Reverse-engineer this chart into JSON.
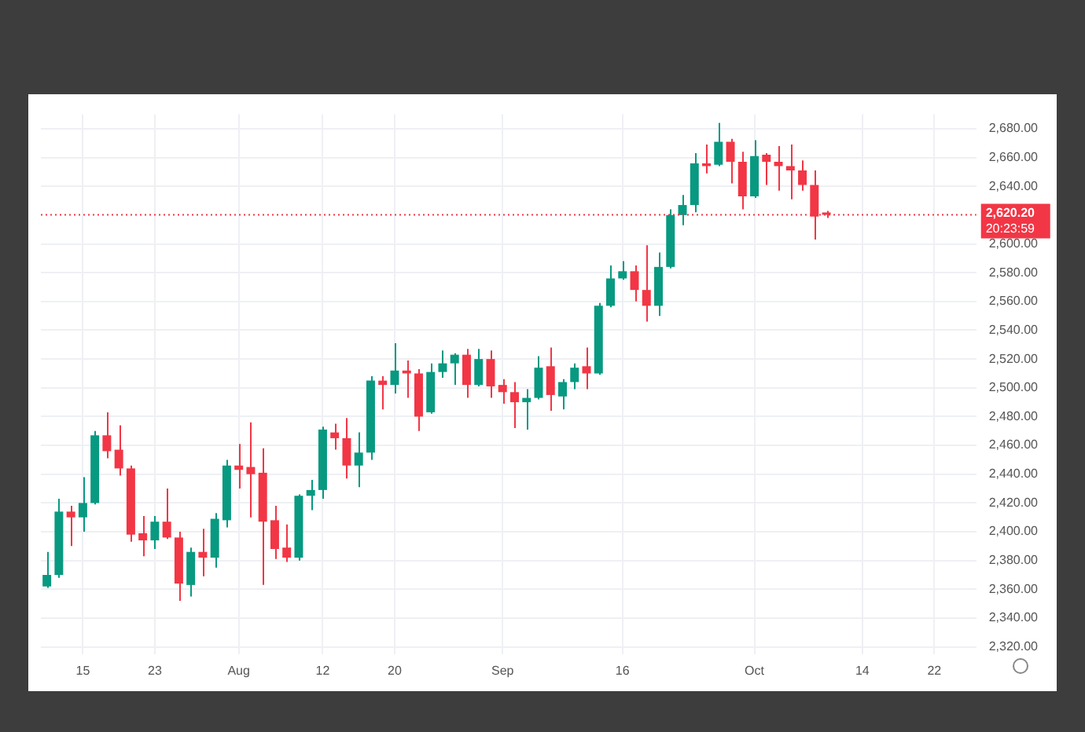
{
  "chart_data": {
    "type": "candlestick",
    "categories": [
      null,
      null,
      null,
      "15",
      null,
      null,
      null,
      null,
      null,
      "23",
      null,
      null,
      null,
      null,
      null,
      null,
      "Aug",
      null,
      null,
      null,
      null,
      null,
      null,
      "12",
      null,
      null,
      null,
      null,
      null,
      "20",
      null,
      null,
      null,
      null,
      null,
      null,
      null,
      null,
      "Sep",
      null,
      null,
      null,
      null,
      null,
      null,
      null,
      null,
      null,
      "16",
      null,
      null,
      null,
      null,
      null,
      null,
      null,
      null,
      null,
      null,
      "Oct",
      null,
      null,
      null,
      null,
      null,
      null,
      null,
      null,
      "14",
      null,
      null,
      null,
      null,
      null,
      "22",
      null,
      null,
      null
    ],
    "ohlc": [
      [
        2362,
        2386,
        2361,
        2370
      ],
      [
        2370,
        2423,
        2368,
        2414
      ],
      [
        2414,
        2418,
        2390,
        2410
      ],
      [
        2410,
        2438,
        2400,
        2420
      ],
      [
        2420,
        2470,
        2419,
        2467
      ],
      [
        2467,
        2483,
        2451,
        2456
      ],
      [
        2457,
        2474,
        2439,
        2444
      ],
      [
        2444,
        2446,
        2393,
        2398
      ],
      [
        2399,
        2411,
        2383,
        2394
      ],
      [
        2394,
        2411,
        2388,
        2407
      ],
      [
        2407,
        2430,
        2395,
        2396
      ],
      [
        2396,
        2400,
        2352,
        2364
      ],
      [
        2363,
        2389,
        2355,
        2386
      ],
      [
        2386,
        2402,
        2369,
        2382
      ],
      [
        2382,
        2413,
        2375,
        2409
      ],
      [
        2408,
        2450,
        2403,
        2446
      ],
      [
        2446,
        2461,
        2430,
        2443
      ],
      [
        2445,
        2476,
        2410,
        2440
      ],
      [
        2441,
        2458,
        2363,
        2407
      ],
      [
        2408,
        2418,
        2381,
        2388
      ],
      [
        2389,
        2405,
        2379,
        2382
      ],
      [
        2382,
        2426,
        2380,
        2425
      ],
      [
        2425,
        2436,
        2415,
        2429
      ],
      [
        2429,
        2473,
        2423,
        2471
      ],
      [
        2469,
        2475,
        2457,
        2465
      ],
      [
        2465,
        2479,
        2437,
        2446
      ],
      [
        2446,
        2469,
        2431,
        2455
      ],
      [
        2455,
        2508,
        2450,
        2505
      ],
      [
        2505,
        2508,
        2485,
        2502
      ],
      [
        2502,
        2531,
        2496,
        2512
      ],
      [
        2512,
        2519,
        2493,
        2510
      ],
      [
        2510,
        2513,
        2470,
        2480
      ],
      [
        2483,
        2517,
        2482,
        2511
      ],
      [
        2511,
        2526,
        2507,
        2517
      ],
      [
        2517,
        2524,
        2502,
        2523
      ],
      [
        2523,
        2527,
        2493,
        2502
      ],
      [
        2502,
        2527,
        2501,
        2520
      ],
      [
        2520,
        2526,
        2493,
        2501
      ],
      [
        2502,
        2506,
        2489,
        2497
      ],
      [
        2497,
        2504,
        2472,
        2490
      ],
      [
        2490,
        2499,
        2471,
        2493
      ],
      [
        2493,
        2522,
        2492,
        2514
      ],
      [
        2515,
        2528,
        2484,
        2495
      ],
      [
        2494,
        2506,
        2485,
        2504
      ],
      [
        2504,
        2517,
        2499,
        2514
      ],
      [
        2515,
        2528,
        2499,
        2510
      ],
      [
        2510,
        2559,
        2509,
        2557
      ],
      [
        2557,
        2585,
        2556,
        2576
      ],
      [
        2576,
        2588,
        2575,
        2581
      ],
      [
        2581,
        2585,
        2560,
        2568
      ],
      [
        2568,
        2599,
        2546,
        2557
      ],
      [
        2557,
        2594,
        2550,
        2584
      ],
      [
        2584,
        2624,
        2583,
        2620
      ],
      [
        2620,
        2634,
        2613,
        2627
      ],
      [
        2627,
        2663,
        2622,
        2656
      ],
      [
        2656,
        2669,
        2649,
        2654
      ],
      [
        2655,
        2684,
        2654,
        2671
      ],
      [
        2671,
        2673,
        2642,
        2657
      ],
      [
        2657,
        2664,
        2624,
        2633
      ],
      [
        2633,
        2672,
        2632,
        2661
      ],
      [
        2662,
        2663,
        2641,
        2657
      ],
      [
        2657,
        2668,
        2637,
        2654
      ],
      [
        2654,
        2669,
        2631,
        2651
      ],
      [
        2651,
        2658,
        2637,
        2641
      ],
      [
        2641,
        2651,
        2603,
        2619
      ],
      [
        2621,
        2623,
        2618,
        2620.2
      ],
      null,
      null,
      null,
      null,
      null,
      null,
      null,
      null,
      null,
      null,
      null,
      null
    ],
    "ylim": [
      2315,
      2690
    ],
    "yticks": [
      {
        "value": 2320,
        "label": "2,320.00"
      },
      {
        "value": 2340,
        "label": "2,340.00"
      },
      {
        "value": 2360,
        "label": "2,360.00"
      },
      {
        "value": 2380,
        "label": "2,380.00"
      },
      {
        "value": 2400,
        "label": "2,400.00"
      },
      {
        "value": 2420,
        "label": "2,420.00"
      },
      {
        "value": 2440,
        "label": "2,440.00"
      },
      {
        "value": 2460,
        "label": "2,460.00"
      },
      {
        "value": 2480,
        "label": "2,480.00"
      },
      {
        "value": 2500,
        "label": "2,500.00"
      },
      {
        "value": 2520,
        "label": "2,520.00"
      },
      {
        "value": 2540,
        "label": "2,540.00"
      },
      {
        "value": 2560,
        "label": "2,560.00"
      },
      {
        "value": 2580,
        "label": "2,580.00"
      },
      {
        "value": 2600,
        "label": "2,600.00"
      },
      {
        "value": 2640,
        "label": "2,640.00"
      },
      {
        "value": 2660,
        "label": "2,660.00"
      },
      {
        "value": 2680,
        "label": "2,680.00"
      }
    ],
    "ref_lines": [
      {
        "axis": "y",
        "value": 2620.2,
        "label": "2,620.20",
        "color": "#f23645",
        "line_style": "dotted"
      }
    ],
    "annotations": [
      "20:23:59"
    ],
    "grid": true,
    "legend": false
  }
}
